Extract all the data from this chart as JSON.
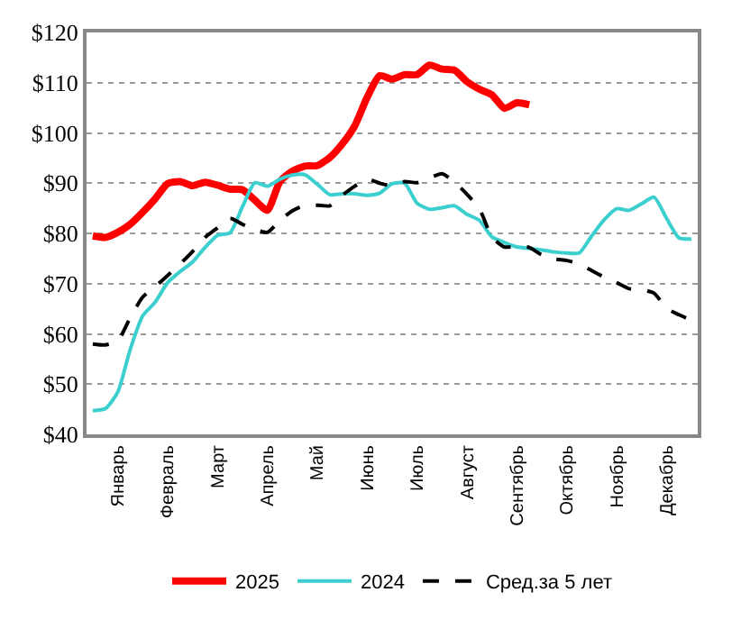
{
  "chart_data": {
    "type": "line",
    "ylim": [
      40,
      120
    ],
    "categories": [
      null,
      null,
      "Январь",
      null,
      null,
      null,
      "Февраль",
      null,
      null,
      null,
      "Март",
      null,
      null,
      null,
      "Апрель",
      null,
      null,
      null,
      "Май",
      null,
      null,
      null,
      "Июнь",
      null,
      null,
      null,
      "Июль",
      null,
      null,
      null,
      "Август",
      null,
      null,
      null,
      "Сентябрь",
      null,
      null,
      null,
      "Октябрь",
      null,
      null,
      null,
      "Ноябрь",
      null,
      null,
      null,
      "Декабрь",
      null,
      null
    ],
    "yticks": [
      {
        "value": 40,
        "label": "$40"
      },
      {
        "value": 50,
        "label": "$50"
      },
      {
        "value": 60,
        "label": "$60"
      },
      {
        "value": 70,
        "label": "$70"
      },
      {
        "value": 80,
        "label": "$80"
      },
      {
        "value": 90,
        "label": "$90"
      },
      {
        "value": 100,
        "label": "$100"
      },
      {
        "value": 110,
        "label": "$110"
      },
      {
        "value": 120,
        "label": "$120"
      }
    ],
    "grid": "y",
    "legend": "bottom",
    "marker": "none",
    "series": [
      {
        "name": "2025",
        "color": "#ff0000",
        "line_style": "solid",
        "values": [
          79.5,
          79.2,
          80.2,
          81.8,
          84.2,
          86.9,
          89.9,
          90.3,
          89.5,
          90.2,
          89.6,
          88.8,
          88.7,
          86.6,
          84.6,
          90.3,
          92.4,
          93.4,
          93.5,
          95.1,
          97.8,
          101.4,
          107.1,
          111.4,
          110.7,
          111.6,
          111.6,
          113.5,
          112.7,
          112.5,
          110.2,
          108.7,
          107.6,
          104.9,
          106,
          105.6,
          null,
          null,
          null,
          null,
          null,
          null,
          null,
          null,
          null,
          null,
          null,
          null,
          null
        ]
      },
      {
        "name": "2024",
        "color": "#3ccfcf",
        "line_style": "solid",
        "values": [
          44.7,
          45.1,
          48.4,
          56.9,
          63.6,
          66.3,
          70.2,
          72.4,
          74.3,
          77.2,
          79.6,
          80.1,
          85.3,
          90.1,
          89.4,
          90.8,
          91.6,
          91.7,
          89.8,
          87.7,
          87.9,
          87.9,
          87.6,
          88,
          89.9,
          90,
          86,
          84.8,
          85.1,
          85.5,
          83.8,
          82.6,
          79.3,
          78.2,
          77.3,
          77,
          76.7,
          76.3,
          76.1,
          76.1,
          79.5,
          82.7,
          84.9,
          84.6,
          85.9,
          87.2,
          83,
          79.1,
          78.9
        ]
      },
      {
        "name": "Сред.за 5 лет",
        "color": "#000000",
        "line_style": "dashed",
        "values": [
          58,
          57.8,
          58.6,
          63.2,
          67.3,
          69.4,
          71.6,
          73.9,
          76.4,
          79.2,
          81.1,
          83,
          81.8,
          80.8,
          80.2,
          82.6,
          84.5,
          85.6,
          85.6,
          85.5,
          87.6,
          89.4,
          90.8,
          90,
          89.5,
          90.3,
          90.1,
          91,
          91.9,
          90.2,
          87.8,
          84.9,
          79.3,
          77.3,
          77.4,
          77.2,
          75.7,
          74.9,
          74.6,
          73.9,
          72.6,
          71.3,
          70.2,
          69,
          68.8,
          68.1,
          65.1,
          63.8,
          62.7
        ]
      }
    ]
  }
}
